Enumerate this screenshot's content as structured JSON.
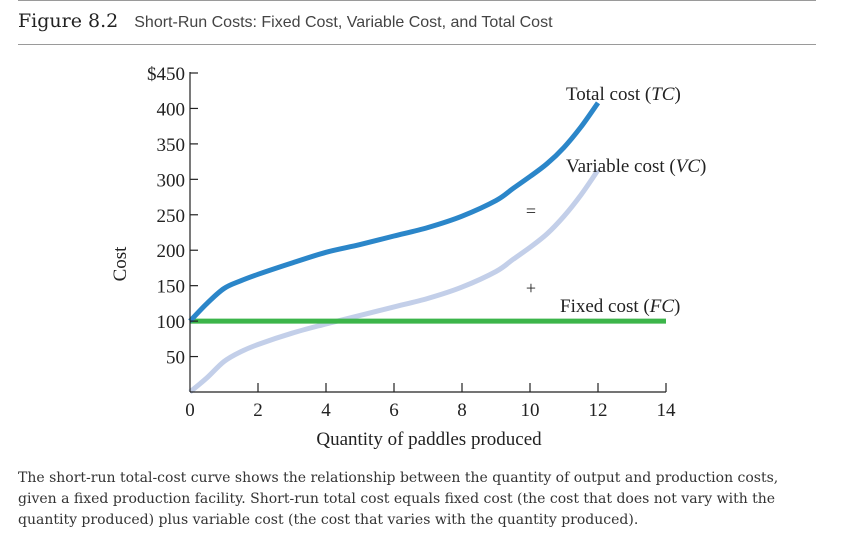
{
  "figure": {
    "label": "Figure 8.2",
    "title": "Short-Run Costs: Fixed Cost, Variable Cost, and Total Cost",
    "caption": "The short-run total-cost curve shows the relationship between the quantity of output and production costs, given a fixed production facility. Short-run total cost equals fixed cost (the cost that does not vary with the quantity produced) plus variable cost (the cost that varies with the quantity produced)."
  },
  "chart_data": {
    "type": "line",
    "xlabel": "Quantity of paddles produced",
    "ylabel": "Cost",
    "xlim": [
      0,
      14
    ],
    "ylim": [
      0,
      450
    ],
    "x_ticks": [
      0,
      2,
      4,
      6,
      8,
      10,
      12,
      14
    ],
    "y_ticks": [
      50,
      100,
      150,
      200,
      250,
      300,
      350,
      400,
      450
    ],
    "y_tick_labels": [
      "50",
      "100",
      "150",
      "200",
      "250",
      "300",
      "350",
      "400",
      "$450"
    ],
    "grid": false,
    "series": [
      {
        "name": "Total cost (TC)",
        "color": "#2b86c9",
        "x": [
          0,
          0.5,
          1,
          1.5,
          2,
          3,
          4,
          5,
          6,
          7,
          8,
          9,
          9.5,
          10,
          10.5,
          11,
          11.5,
          12
        ],
        "values": [
          100,
          125,
          146,
          157,
          166,
          182,
          197,
          208,
          220,
          232,
          248,
          270,
          287,
          304,
          322,
          345,
          374,
          408
        ]
      },
      {
        "name": "Variable cost (VC)",
        "color": "#c3cfe9",
        "x": [
          0,
          0.5,
          1,
          1.5,
          2,
          3,
          4,
          5,
          6,
          7,
          8,
          9,
          9.5,
          10,
          10.5,
          11,
          11.5,
          12
        ],
        "values": [
          0,
          20,
          43,
          57,
          67,
          83,
          96,
          108,
          120,
          132,
          148,
          170,
          187,
          204,
          223,
          248,
          278,
          313
        ]
      },
      {
        "name": "Fixed cost (FC)",
        "color": "#3cb54a",
        "x": [
          0,
          14
        ],
        "values": [
          100,
          100
        ]
      }
    ],
    "annotations": [
      "=",
      "+"
    ]
  }
}
